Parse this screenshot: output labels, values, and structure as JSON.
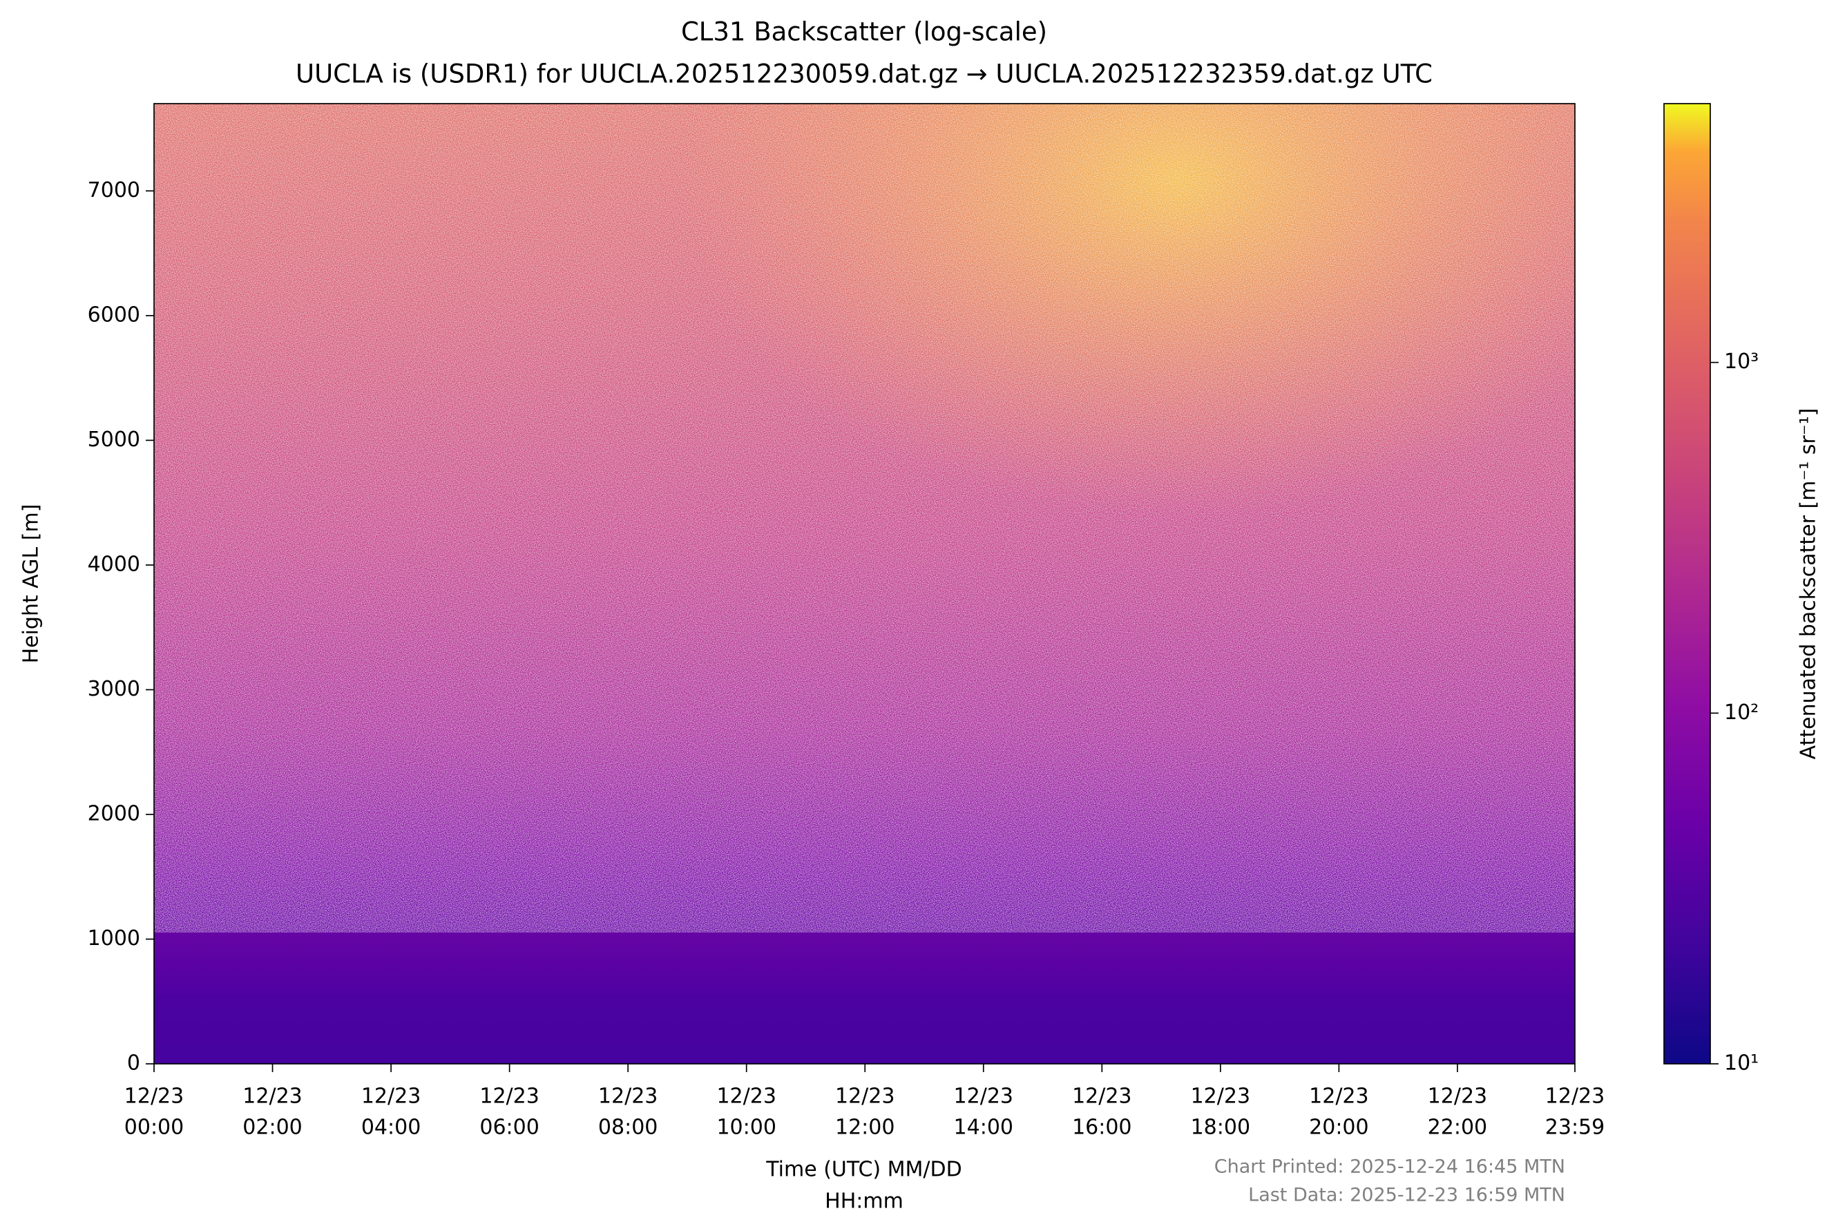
{
  "chart_data": {
    "type": "heatmap",
    "title": "CL31 Backscatter (log-scale)",
    "subtitle": "UUCLA is (USDR1) for UUCLA.202512230059.dat.gz → UUCLA.202512232359.dat.gz UTC",
    "xlabel": [
      "Time (UTC) MM/DD",
      "HH:mm"
    ],
    "ylabel": "Height AGL [m]",
    "xlim": [
      0,
      23.983
    ],
    "xticks": [
      {
        "value": 0,
        "label": [
          "12/23",
          "00:00"
        ]
      },
      {
        "value": 2,
        "label": [
          "12/23",
          "02:00"
        ]
      },
      {
        "value": 4,
        "label": [
          "12/23",
          "04:00"
        ]
      },
      {
        "value": 6,
        "label": [
          "12/23",
          "06:00"
        ]
      },
      {
        "value": 8,
        "label": [
          "12/23",
          "08:00"
        ]
      },
      {
        "value": 10,
        "label": [
          "12/23",
          "10:00"
        ]
      },
      {
        "value": 12,
        "label": [
          "12/23",
          "12:00"
        ]
      },
      {
        "value": 14,
        "label": [
          "12/23",
          "14:00"
        ]
      },
      {
        "value": 16,
        "label": [
          "12/23",
          "16:00"
        ]
      },
      {
        "value": 18,
        "label": [
          "12/23",
          "18:00"
        ]
      },
      {
        "value": 20,
        "label": [
          "12/23",
          "20:00"
        ]
      },
      {
        "value": 22,
        "label": [
          "12/23",
          "22:00"
        ]
      },
      {
        "value": 23.983,
        "label": [
          "12/23",
          "23:59"
        ]
      }
    ],
    "ylim": [
      0,
      7700
    ],
    "yticks": [
      0,
      1000,
      2000,
      3000,
      4000,
      5000,
      6000,
      7000
    ],
    "colorbar": {
      "label": "Attenuated backscatter [m⁻¹ sr⁻¹]",
      "colormap": "plasma",
      "log_scale": true,
      "clim": [
        10,
        5470
      ],
      "ticks": [
        {
          "value": 10,
          "label": "10¹"
        },
        {
          "value": 100,
          "label": "10²"
        },
        {
          "value": 1000,
          "label": "10³"
        }
      ]
    },
    "footer": [
      "Chart Printed: 2025-12-24 16:45 MTN",
      "Last Data: 2025-12-23 16:59 MTN"
    ]
  }
}
